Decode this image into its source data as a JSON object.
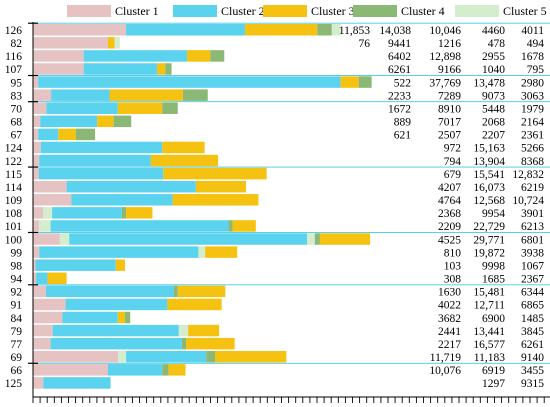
{
  "chart_data": {
    "type": "bar",
    "stacked": true,
    "orientation": "horizontal",
    "title": "",
    "xlabel": "",
    "ylabel": "",
    "legend_position": "top",
    "series": [
      {
        "name": "Cluster 1",
        "color": "#e6c3c3"
      },
      {
        "name": "Cluster 2",
        "color": "#5bd3ef"
      },
      {
        "name": "Cluster 3",
        "color": "#f5c211"
      },
      {
        "name": "Cluster 4",
        "color": "#8bb874"
      },
      {
        "name": "Cluster 5",
        "color": "#d4edcc"
      }
    ],
    "rows": [
      {
        "label": "126",
        "values": [
          11853,
          14038,
          10046,
          4460,
          4011
        ]
      },
      {
        "label": "82",
        "values": [
          76,
          9441,
          1216,
          478,
          494
        ]
      },
      {
        "label": "116",
        "values": [
          6402,
          12898,
          2955,
          1678,
          null
        ]
      },
      {
        "label": "107",
        "values": [
          6261,
          9166,
          1040,
          795,
          null
        ]
      },
      {
        "label": "95",
        "values": [
          522,
          37769,
          13478,
          2980,
          null
        ]
      },
      {
        "label": "83",
        "values": [
          2233,
          7289,
          9073,
          3063,
          null
        ]
      },
      {
        "label": "70",
        "values": [
          1672,
          8910,
          5448,
          1979,
          null
        ]
      },
      {
        "label": "68",
        "values": [
          889,
          7017,
          2068,
          2164,
          null
        ]
      },
      {
        "label": "67",
        "values": [
          621,
          2507,
          2207,
          2361,
          null
        ]
      },
      {
        "label": "124",
        "values": [
          972,
          15163,
          5266,
          null,
          null
        ]
      },
      {
        "label": "122",
        "values": [
          794,
          13904,
          8368,
          null,
          null
        ]
      },
      {
        "label": "115",
        "values": [
          679,
          15541,
          12832,
          null,
          null
        ]
      },
      {
        "label": "114",
        "values": [
          4207,
          16073,
          6219,
          null,
          null
        ]
      },
      {
        "label": "109",
        "values": [
          4764,
          12568,
          10724,
          null,
          null
        ]
      },
      {
        "label": "108",
        "values": [
          2368,
          9954,
          3901,
          null,
          null
        ]
      },
      {
        "label": "101",
        "values": [
          2209,
          22729,
          6213,
          null,
          null
        ]
      },
      {
        "label": "100",
        "values": [
          4525,
          29771,
          6801,
          null,
          null
        ]
      },
      {
        "label": "99",
        "values": [
          810,
          19872,
          3938,
          null,
          null
        ]
      },
      {
        "label": "98",
        "values": [
          103,
          9998,
          1067,
          null,
          null
        ]
      },
      {
        "label": "94",
        "values": [
          308,
          1685,
          2367,
          null,
          null
        ]
      },
      {
        "label": "92",
        "values": [
          1630,
          15481,
          6344,
          null,
          null
        ]
      },
      {
        "label": "91",
        "values": [
          4022,
          12711,
          6865,
          null,
          null
        ]
      },
      {
        "label": "84",
        "values": [
          3682,
          6900,
          1485,
          null,
          null
        ]
      },
      {
        "label": "79",
        "values": [
          2441,
          13441,
          3845,
          null,
          null
        ]
      },
      {
        "label": "77",
        "values": [
          2217,
          16577,
          6261,
          null,
          null
        ]
      },
      {
        "label": "69",
        "values": [
          11719,
          11183,
          9140,
          null,
          null
        ]
      },
      {
        "label": "66",
        "values": [
          10076,
          6919,
          3455,
          null,
          null
        ]
      },
      {
        "label": "125",
        "values": [
          1297,
          9315,
          null,
          null,
          null
        ]
      }
    ],
    "value_labels": [
      [
        "11,853",
        "14,038",
        "10,046",
        "4460",
        "4011"
      ],
      [
        "76",
        "9441",
        "1216",
        "478",
        "494"
      ],
      [
        "6402",
        "12,898",
        "2955",
        "1678"
      ],
      [
        "6261",
        "9166",
        "1040",
        "795"
      ],
      [
        "522",
        "37,769",
        "13,478",
        "2980"
      ],
      [
        "2233",
        "7289",
        "9073",
        "3063"
      ],
      [
        "1672",
        "8910",
        "5448",
        "1979"
      ],
      [
        "889",
        "7017",
        "2068",
        "2164"
      ],
      [
        "621",
        "2507",
        "2207",
        "2361"
      ],
      [
        "972",
        "15,163",
        "5266"
      ],
      [
        "794",
        "13,904",
        "8368"
      ],
      [
        "679",
        "15,541",
        "12,832"
      ],
      [
        "4207",
        "16,073",
        "6219"
      ],
      [
        "4764",
        "12,568",
        "10,724"
      ],
      [
        "2368",
        "9954",
        "3901"
      ],
      [
        "2209",
        "22,729",
        "6213"
      ],
      [
        "4525",
        "29,771",
        "6801"
      ],
      [
        "810",
        "19,872",
        "3938"
      ],
      [
        "103",
        "9998",
        "1067"
      ],
      [
        "308",
        "1685",
        "2367"
      ],
      [
        "1630",
        "15,481",
        "6344"
      ],
      [
        "4022",
        "12,711",
        "6865"
      ],
      [
        "3682",
        "6900",
        "1485"
      ],
      [
        "2441",
        "13,441",
        "3845"
      ],
      [
        "2217",
        "16,577",
        "6261"
      ],
      [
        "11,719",
        "11,183",
        "9140"
      ],
      [
        "10,076",
        "6919",
        "3455"
      ],
      [
        "1297",
        "9315"
      ]
    ],
    "segments": [
      [
        [
          0.0,
          0.18,
          "c1"
        ],
        [
          0.18,
          0.41,
          "c2"
        ],
        [
          0.41,
          0.55,
          "c3"
        ],
        [
          0.55,
          0.578,
          "c4"
        ],
        [
          0.578,
          0.595,
          "c5"
        ]
      ],
      [
        [
          0.0,
          0.145,
          "c1"
        ],
        [
          0.145,
          0.158,
          "c3"
        ],
        [
          0.158,
          0.168,
          "c5"
        ]
      ],
      [
        [
          0.0,
          0.098,
          "c1"
        ],
        [
          0.098,
          0.298,
          "c2"
        ],
        [
          0.298,
          0.343,
          "c3"
        ],
        [
          0.343,
          0.37,
          "c4"
        ]
      ],
      [
        [
          0.0,
          0.098,
          "c1"
        ],
        [
          0.098,
          0.24,
          "c2"
        ],
        [
          0.24,
          0.256,
          "c3"
        ],
        [
          0.256,
          0.268,
          "c4"
        ]
      ],
      [
        [
          0.0,
          0.01,
          "c1"
        ],
        [
          0.01,
          0.595,
          "c2"
        ],
        [
          0.595,
          0.63,
          "c3"
        ],
        [
          0.63,
          0.655,
          "c4"
        ]
      ],
      [
        [
          0.0,
          0.035,
          "c1"
        ],
        [
          0.035,
          0.148,
          "c2"
        ],
        [
          0.148,
          0.29,
          "c3"
        ],
        [
          0.29,
          0.338,
          "c4"
        ]
      ],
      [
        [
          0.0,
          0.026,
          "c1"
        ],
        [
          0.026,
          0.164,
          "c2"
        ],
        [
          0.164,
          0.25,
          "c3"
        ],
        [
          0.25,
          0.28,
          "c4"
        ]
      ],
      [
        [
          0.0,
          0.014,
          "c1"
        ],
        [
          0.014,
          0.124,
          "c2"
        ],
        [
          0.124,
          0.156,
          "c3"
        ],
        [
          0.156,
          0.19,
          "c4"
        ]
      ],
      [
        [
          0.0,
          0.01,
          "c1"
        ],
        [
          0.01,
          0.049,
          "c2"
        ],
        [
          0.049,
          0.083,
          "c3"
        ],
        [
          0.083,
          0.12,
          "c4"
        ]
      ],
      [
        [
          0.0,
          0.015,
          "c1"
        ],
        [
          0.015,
          0.25,
          "c2"
        ],
        [
          0.25,
          0.332,
          "c3"
        ]
      ],
      [
        [
          0.0,
          0.012,
          "c1"
        ],
        [
          0.012,
          0.228,
          "c2"
        ],
        [
          0.228,
          0.358,
          "c3"
        ]
      ],
      [
        [
          0.0,
          0.011,
          "c1"
        ],
        [
          0.011,
          0.252,
          "c2"
        ],
        [
          0.252,
          0.452,
          "c3"
        ]
      ],
      [
        [
          0.0,
          0.065,
          "c1"
        ],
        [
          0.065,
          0.315,
          "c2"
        ],
        [
          0.315,
          0.412,
          "c3"
        ]
      ],
      [
        [
          0.0,
          0.074,
          "c1"
        ],
        [
          0.074,
          0.27,
          "c2"
        ],
        [
          0.27,
          0.436,
          "c3"
        ]
      ],
      [
        [
          0.0,
          0.02,
          "c1"
        ],
        [
          0.02,
          0.037,
          "c5"
        ],
        [
          0.037,
          0.172,
          "c2"
        ],
        [
          0.172,
          0.18,
          "c4"
        ],
        [
          0.18,
          0.231,
          "c3"
        ]
      ],
      [
        [
          0.0,
          0.012,
          "c1"
        ],
        [
          0.012,
          0.034,
          "c5"
        ],
        [
          0.034,
          0.378,
          "c2"
        ],
        [
          0.378,
          0.386,
          "c4"
        ],
        [
          0.386,
          0.431,
          "c3"
        ]
      ],
      [
        [
          0.0,
          0.052,
          "c1"
        ],
        [
          0.052,
          0.07,
          "c5"
        ],
        [
          0.07,
          0.53,
          "c2"
        ],
        [
          0.53,
          0.545,
          "c5"
        ],
        [
          0.545,
          0.555,
          "c4"
        ],
        [
          0.555,
          0.652,
          "c3"
        ]
      ],
      [
        [
          0.0,
          0.012,
          "c1"
        ],
        [
          0.012,
          0.32,
          "c2"
        ],
        [
          0.32,
          0.333,
          "c5"
        ],
        [
          0.333,
          0.395,
          "c3"
        ]
      ],
      [
        [
          0.0,
          0.005,
          "c1"
        ],
        [
          0.005,
          0.16,
          "c2"
        ],
        [
          0.16,
          0.178,
          "c3"
        ]
      ],
      [
        [
          0.0,
          0.006,
          "c1"
        ],
        [
          0.006,
          0.028,
          "c2"
        ],
        [
          0.028,
          0.065,
          "c3"
        ]
      ],
      [
        [
          0.0,
          0.025,
          "c1"
        ],
        [
          0.025,
          0.272,
          "c2"
        ],
        [
          0.272,
          0.28,
          "c4"
        ],
        [
          0.28,
          0.372,
          "c3"
        ]
      ],
      [
        [
          0.0,
          0.063,
          "c1"
        ],
        [
          0.063,
          0.26,
          "c2"
        ],
        [
          0.26,
          0.365,
          "c3"
        ]
      ],
      [
        [
          0.0,
          0.057,
          "c1"
        ],
        [
          0.057,
          0.164,
          "c2"
        ],
        [
          0.164,
          0.178,
          "c3"
        ],
        [
          0.178,
          0.188,
          "c4"
        ]
      ],
      [
        [
          0.0,
          0.038,
          "c1"
        ],
        [
          0.038,
          0.282,
          "c2"
        ],
        [
          0.282,
          0.3,
          "c5"
        ],
        [
          0.3,
          0.36,
          "c3"
        ]
      ],
      [
        [
          0.0,
          0.034,
          "c1"
        ],
        [
          0.034,
          0.288,
          "c2"
        ],
        [
          0.288,
          0.296,
          "c4"
        ],
        [
          0.296,
          0.39,
          "c3"
        ]
      ],
      [
        [
          0.0,
          0.165,
          "c1"
        ],
        [
          0.165,
          0.18,
          "c5"
        ],
        [
          0.18,
          0.335,
          "c2"
        ],
        [
          0.335,
          0.352,
          "c4"
        ],
        [
          0.352,
          0.49,
          "c3"
        ]
      ],
      [
        [
          0.0,
          0.145,
          "c1"
        ],
        [
          0.145,
          0.25,
          "c2"
        ],
        [
          0.25,
          0.262,
          "c4"
        ],
        [
          0.262,
          0.295,
          "c3"
        ]
      ],
      [
        [
          0.0,
          0.02,
          "c1"
        ],
        [
          0.02,
          0.15,
          "c2"
        ]
      ]
    ]
  }
}
